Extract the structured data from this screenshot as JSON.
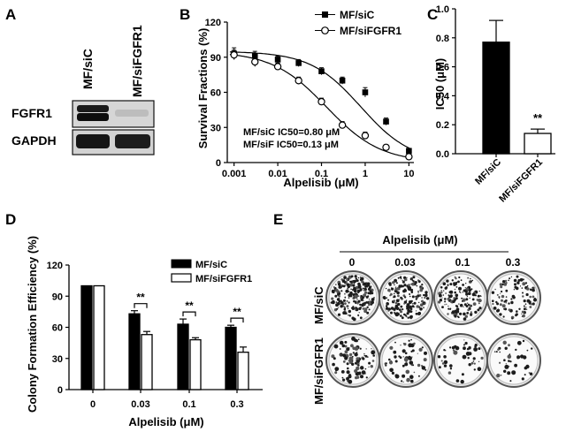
{
  "panels": {
    "A": {
      "letter": "A",
      "lanes": [
        "MF/siC",
        "MF/siFGFR1"
      ],
      "rows": [
        "FGFR1",
        "GAPDH"
      ],
      "band_intensity": {
        "FGFR1": [
          1.0,
          0.15
        ],
        "GAPDH": [
          1.0,
          1.0
        ]
      }
    },
    "B": {
      "letter": "B"
    },
    "C": {
      "letter": "C"
    },
    "D": {
      "letter": "D"
    },
    "E": {
      "letter": "E",
      "header": "Alpelisib (μM)",
      "concentrations": [
        "0",
        "0.03",
        "0.1",
        "0.3"
      ],
      "rows": [
        "MF/siC",
        "MF/siFGFR1"
      ],
      "colony_density": [
        [
          0.9,
          0.7,
          0.55,
          0.4
        ],
        [
          0.35,
          0.25,
          0.18,
          0.15
        ]
      ]
    }
  },
  "colors": {
    "filled": "#000000",
    "open": "#ffffff",
    "line": "#000000"
  },
  "chart_data": [
    {
      "id": "B",
      "type": "scatter",
      "xlabel": "Alpelisib (μM)",
      "ylabel": "Survival Fractions (%)",
      "xscale": "log",
      "xticks": [
        "0.001",
        "0.01",
        "0.1",
        "1",
        "10"
      ],
      "xlim": [
        0.0007,
        13
      ],
      "yticks": [
        "0",
        "30",
        "60",
        "90",
        "120"
      ],
      "ylim": [
        0,
        120
      ],
      "legend_position": "top-right",
      "annotations": [
        "MF/siC IC50=0.80 μM",
        "MF/siF IC50=0.13 μM"
      ],
      "series": [
        {
          "name": "MF/siC",
          "marker": "filled-square",
          "x": [
            0.001,
            0.003,
            0.01,
            0.03,
            0.1,
            0.3,
            1,
            3,
            10
          ],
          "y": [
            93,
            91,
            88,
            85,
            78,
            70,
            60,
            35,
            10
          ],
          "err": [
            5,
            4,
            3,
            3,
            3,
            3,
            4,
            3,
            2
          ],
          "fit": {
            "top": 95,
            "bottom": 0,
            "ic50": 0.8,
            "hill": 0.75
          }
        },
        {
          "name": "MF/siFGFR1",
          "marker": "open-circle",
          "x": [
            0.001,
            0.003,
            0.01,
            0.03,
            0.1,
            0.3,
            1,
            3,
            10
          ],
          "y": [
            92,
            86,
            82,
            70,
            52,
            32,
            23,
            13,
            5
          ],
          "err": [
            4,
            4,
            3,
            3,
            3,
            3,
            3,
            2,
            2
          ],
          "fit": {
            "top": 95,
            "bottom": 0,
            "ic50": 0.13,
            "hill": 0.7
          }
        }
      ]
    },
    {
      "id": "C",
      "type": "bar",
      "ylabel": "IC50 (μM)",
      "categories": [
        "MF/siC",
        "MF/siFGFR1"
      ],
      "values": [
        0.77,
        0.14
      ],
      "err": [
        0.15,
        0.03
      ],
      "fills": [
        "filled",
        "open"
      ],
      "yticks": [
        "0.0",
        "0.2",
        "0.4",
        "0.6",
        "0.8",
        "1.0"
      ],
      "ylim": [
        0,
        1.0
      ],
      "significance": [
        {
          "category": "MF/siFGFR1",
          "label": "**"
        }
      ]
    },
    {
      "id": "D",
      "type": "bar",
      "xlabel": "Alpelisib (μM)",
      "ylabel": "Colony Formation Efficiency (%)",
      "categories": [
        "0",
        "0.03",
        "0.1",
        "0.3"
      ],
      "yticks": [
        "0",
        "30",
        "60",
        "90",
        "120"
      ],
      "ylim": [
        0,
        120
      ],
      "legend_position": "top-right",
      "series": [
        {
          "name": "MF/siC",
          "fill": "filled",
          "values": [
            100,
            73,
            63,
            60
          ],
          "err": [
            0,
            3,
            5,
            2
          ]
        },
        {
          "name": "MF/siFGFR1",
          "fill": "open",
          "values": [
            100,
            53,
            48,
            36
          ],
          "err": [
            0,
            3,
            2,
            5
          ]
        }
      ],
      "significance": [
        {
          "category": "0.03",
          "label": "**"
        },
        {
          "category": "0.1",
          "label": "**"
        },
        {
          "category": "0.3",
          "label": "**"
        }
      ]
    }
  ]
}
